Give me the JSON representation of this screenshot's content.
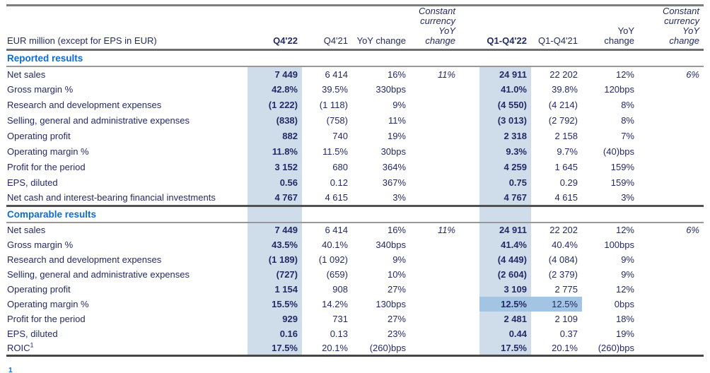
{
  "header": {
    "row_label": "EUR million (except for EPS in EUR)",
    "columns": [
      "Q4'22",
      "Q4'21",
      "YoY change",
      "Constant\ncurrency\nYoY\nchange",
      "Q1-Q4'22",
      "Q1-Q4'21",
      "YoY\nchange",
      "Constant\ncurrency\nYoY\nchange"
    ]
  },
  "sections": [
    {
      "title": "Reported results",
      "rows": [
        {
          "label": "Net sales",
          "values": [
            "7 449",
            "6 414",
            "16%",
            "11%",
            "24 911",
            "22 202",
            "12%",
            "6%"
          ]
        },
        {
          "label": "Gross margin %",
          "values": [
            "42.8%",
            "39.5%",
            "330bps",
            "",
            "41.0%",
            "39.8%",
            "120bps",
            ""
          ]
        },
        {
          "label": "Research and development expenses",
          "values": [
            "(1 222)",
            "(1 118)",
            "9%",
            "",
            "(4 550)",
            "(4 214)",
            "8%",
            ""
          ]
        },
        {
          "label": "Selling, general and administrative expenses",
          "values": [
            "(838)",
            "(758)",
            "11%",
            "",
            "(3 013)",
            "(2 792)",
            "8%",
            ""
          ]
        },
        {
          "label": "Operating profit",
          "values": [
            "882",
            "740",
            "19%",
            "",
            "2 318",
            "2 158",
            "7%",
            ""
          ]
        },
        {
          "label": "Operating margin %",
          "values": [
            "11.8%",
            "11.5%",
            "30bps",
            "",
            "9.3%",
            "9.7%",
            "(40)bps",
            ""
          ]
        },
        {
          "label": "Profit for the period",
          "values": [
            "3 152",
            "680",
            "364%",
            "",
            "4 259",
            "1 645",
            "159%",
            ""
          ]
        },
        {
          "label": "EPS, diluted",
          "values": [
            "0.56",
            "0.12",
            "367%",
            "",
            "0.75",
            "0.29",
            "159%",
            ""
          ]
        },
        {
          "label": "Net cash and interest-bearing financial investments",
          "values": [
            "4 767",
            "4 615",
            "3%",
            "",
            "4 767",
            "4 615",
            "3%",
            ""
          ]
        }
      ]
    },
    {
      "title": "Comparable results",
      "rows": [
        {
          "label": "Net sales",
          "values": [
            "7 449",
            "6 414",
            "16%",
            "11%",
            "24 911",
            "22 202",
            "12%",
            "6%"
          ]
        },
        {
          "label": "Gross margin %",
          "values": [
            "43.5%",
            "40.1%",
            "340bps",
            "",
            "41.4%",
            "40.4%",
            "100bps",
            ""
          ]
        },
        {
          "label": "Research and development expenses",
          "values": [
            "(1 189)",
            "(1 092)",
            "9%",
            "",
            "(4 449)",
            "(4 084)",
            "9%",
            ""
          ]
        },
        {
          "label": "Selling, general and administrative expenses",
          "values": [
            "(727)",
            "(659)",
            "10%",
            "",
            "(2 604)",
            "(2 379)",
            "9%",
            ""
          ]
        },
        {
          "label": "Operating profit",
          "values": [
            "1 154",
            "908",
            "27%",
            "",
            "3 109",
            "2 775",
            "12%",
            ""
          ]
        },
        {
          "label": "Operating margin %",
          "values": [
            "15.5%",
            "14.2%",
            "130bps",
            "",
            "12.5%",
            "12.5%",
            "0bps",
            ""
          ],
          "highlight": [
            4,
            5
          ]
        },
        {
          "label": "Profit for the period",
          "values": [
            "929",
            "731",
            "27%",
            "",
            "2 481",
            "2 109",
            "18%",
            ""
          ]
        },
        {
          "label": "EPS, diluted",
          "values": [
            "0.16",
            "0.13",
            "23%",
            "",
            "0.44",
            "0.37",
            "19%",
            ""
          ]
        },
        {
          "label": "ROIC",
          "sup": "1",
          "values": [
            "17.5%",
            "20.1%",
            "(260)bps",
            "",
            "17.5%",
            "20.1%",
            "(260)bps",
            ""
          ]
        }
      ]
    }
  ],
  "footnote_marker": "1",
  "colors": {
    "text": "#232b66",
    "section_title": "#0d6bd7",
    "column_band": "#cfdcea",
    "cell_highlight": "#a4c4e4"
  }
}
